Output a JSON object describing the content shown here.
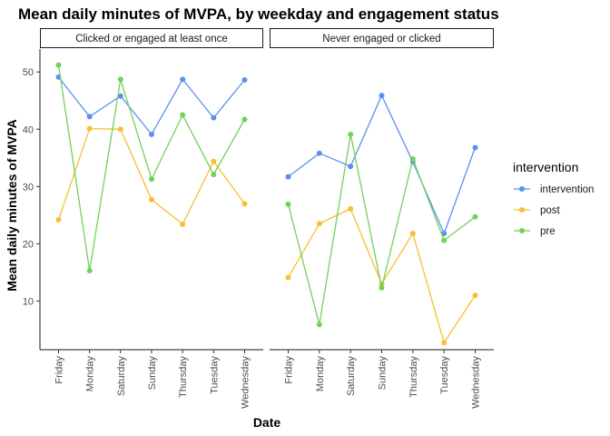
{
  "chart_data": {
    "type": "line",
    "title": "Mean daily minutes of MVPA, by weekday and engagement status",
    "xlabel": "Date",
    "ylabel": "Mean daily minutes of MVPA",
    "categories": [
      "Friday",
      "Monday",
      "Saturday",
      "Sunday",
      "Thursday",
      "Tuesday",
      "Wednesday"
    ],
    "yticks": [
      10,
      20,
      30,
      40,
      50
    ],
    "ylim": [
      1.5,
      54
    ],
    "grid": false,
    "legend": {
      "title": "intervention",
      "position": "right",
      "entries": [
        "intervention",
        "post",
        "pre"
      ]
    },
    "colors": {
      "intervention": "#5b8ff0",
      "post": "#f9bf2f",
      "pre": "#72d15a"
    },
    "panels": [
      {
        "label": "Clicked or engaged at least once",
        "series": [
          {
            "name": "intervention",
            "values": [
              49.1,
              42.2,
              45.8,
              39.1,
              48.7,
              42.0,
              48.6
            ]
          },
          {
            "name": "post",
            "values": [
              24.2,
              40.1,
              40.0,
              27.7,
              23.4,
              34.4,
              27.0
            ]
          },
          {
            "name": "pre",
            "values": [
              51.2,
              15.3,
              48.7,
              31.3,
              42.5,
              32.1,
              41.7
            ]
          }
        ]
      },
      {
        "label": "Never engaged or clicked",
        "series": [
          {
            "name": "intervention",
            "values": [
              31.7,
              35.8,
              33.5,
              45.9,
              34.3,
              21.8,
              36.8
            ]
          },
          {
            "name": "post",
            "values": [
              14.1,
              23.5,
              26.1,
              13.0,
              21.8,
              2.7,
              11.0
            ]
          },
          {
            "name": "pre",
            "values": [
              26.9,
              5.9,
              39.1,
              12.3,
              34.8,
              20.6,
              24.7
            ]
          }
        ]
      }
    ]
  }
}
